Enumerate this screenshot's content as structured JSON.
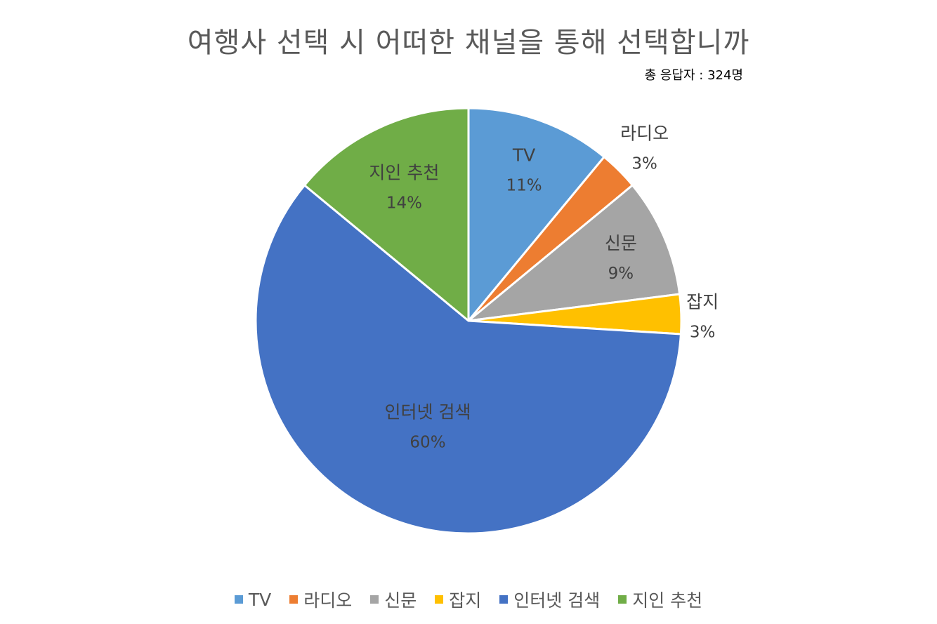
{
  "chart_data": {
    "type": "pie",
    "title": "여행사 선택 시 어떠한 채널을 통해 선택합니까",
    "subtitle": "총 응답자 : 324명",
    "slices": [
      {
        "name": "TV",
        "value": 11,
        "label": "11%",
        "color": "#5B9BD5"
      },
      {
        "name": "라디오",
        "value": 3,
        "label": "3%",
        "color": "#ED7D31"
      },
      {
        "name": "신문",
        "value": 9,
        "label": "9%",
        "color": "#A5A5A5"
      },
      {
        "name": "잡지",
        "value": 3,
        "label": "3%",
        "color": "#FFC000"
      },
      {
        "name": "인터넷 검색",
        "value": 60,
        "label": "60%",
        "color": "#4472C4"
      },
      {
        "name": "지인 추천",
        "value": 14,
        "label": "14%",
        "color": "#70AD47"
      }
    ],
    "legend_position": "bottom"
  }
}
